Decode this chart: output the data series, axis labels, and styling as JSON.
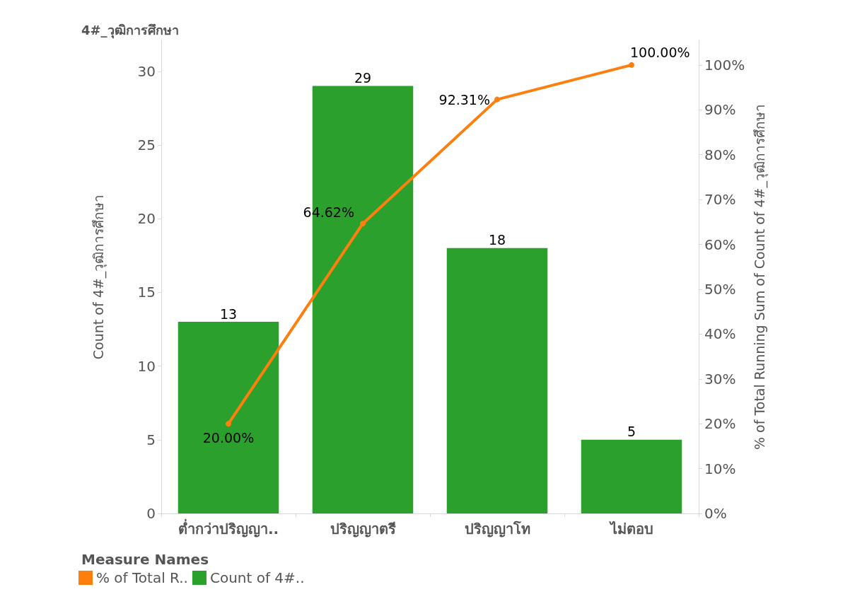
{
  "chart_data": {
    "type": "bar",
    "title": "4#_วุฒิการศึกษา",
    "ylabel": "Count of 4#_วุฒิการศึกษา",
    "y2label": "% of Total Running Sum of Count of 4#_วุฒิการศึกษา",
    "legend_title": "Measure Names",
    "categories": [
      "ต่ำกว่าปริญญา..",
      "ปริญญาตรี",
      "ปริญญาโท",
      "ไม่ตอบ"
    ],
    "series": [
      {
        "name": "% of Total R..",
        "type": "line",
        "axis": "y2",
        "color": "#ff7f0e",
        "values": [
          20.0,
          64.62,
          92.31,
          100.0
        ],
        "value_labels": [
          "20.00%",
          "64.62%",
          "92.31%",
          "100.00%"
        ]
      },
      {
        "name": "Count of 4#..",
        "color": "#2ca02c",
        "values": [
          13,
          29,
          18,
          5
        ],
        "value_labels": [
          "13",
          "29",
          "18",
          "5"
        ]
      }
    ],
    "ylim": [
      0,
      32.1
    ],
    "yticks": [
      0,
      5,
      10,
      15,
      20,
      25,
      30
    ],
    "y2lim": [
      0,
      105.5
    ],
    "y2ticks": [
      {
        "value": 0,
        "label": "0%"
      },
      {
        "value": 10,
        "label": "10%"
      },
      {
        "value": 20,
        "label": "20%"
      },
      {
        "value": 30,
        "label": "30%"
      },
      {
        "value": 40,
        "label": "40%"
      },
      {
        "value": 50,
        "label": "50%"
      },
      {
        "value": 60,
        "label": "60%"
      },
      {
        "value": 70,
        "label": "70%"
      },
      {
        "value": 80,
        "label": "80%"
      },
      {
        "value": 90,
        "label": "90%"
      },
      {
        "value": 100,
        "label": "100%"
      }
    ],
    "grid": false,
    "legend": "bottom left",
    "marker": "circle"
  }
}
